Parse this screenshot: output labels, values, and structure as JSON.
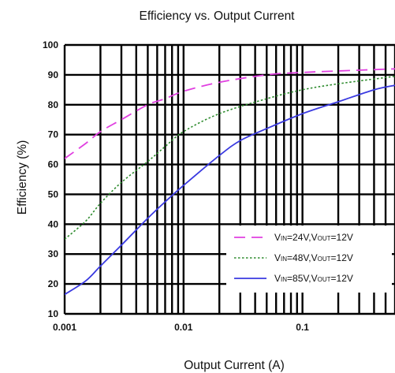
{
  "chart_data": {
    "type": "line",
    "title": "Efficiency vs. Output Current",
    "xlabel": "Output Current (A)",
    "ylabel": "Efficiency (%)",
    "xscale": "log",
    "xlim": [
      0.001,
      0.6
    ],
    "ylim": [
      10,
      100
    ],
    "grid": true,
    "legend_position": "lower-right",
    "x_tick_labels": [
      {
        "value": 0.001,
        "label": "0.001"
      },
      {
        "value": 0.01,
        "label": "0.01"
      },
      {
        "value": 0.1,
        "label": "0.1"
      }
    ],
    "y_tick_labels": [
      {
        "value": 10,
        "label": "10"
      },
      {
        "value": 20,
        "label": "20"
      },
      {
        "value": 30,
        "label": "30"
      },
      {
        "value": 40,
        "label": "40"
      },
      {
        "value": 50,
        "label": "50"
      },
      {
        "value": 60,
        "label": "60"
      },
      {
        "value": 70,
        "label": "70"
      },
      {
        "value": 80,
        "label": "80"
      },
      {
        "value": 90,
        "label": "90"
      },
      {
        "value": 100,
        "label": "100"
      }
    ],
    "series": [
      {
        "legend": {
          "v1": "V",
          "s1": "IN",
          "t1": "=24V,V",
          "s2": "OUT",
          "t2": "=12V"
        },
        "color": "#e040e0",
        "dash": "dashed",
        "points": [
          [
            0.001,
            62
          ],
          [
            0.0015,
            67
          ],
          [
            0.002,
            71
          ],
          [
            0.003,
            75
          ],
          [
            0.005,
            80
          ],
          [
            0.007,
            82
          ],
          [
            0.01,
            84.5
          ],
          [
            0.02,
            87.5
          ],
          [
            0.05,
            90
          ],
          [
            0.1,
            90.8
          ],
          [
            0.2,
            91.3
          ],
          [
            0.6,
            92
          ]
        ]
      },
      {
        "legend": {
          "v1": "V",
          "s1": "IN",
          "t1": "=48V,V",
          "s2": "OUT",
          "t2": "=12V"
        },
        "color": "#2e8b2e",
        "dash": "dotted",
        "points": [
          [
            0.001,
            35
          ],
          [
            0.0015,
            41
          ],
          [
            0.002,
            47
          ],
          [
            0.003,
            54
          ],
          [
            0.005,
            61
          ],
          [
            0.007,
            66
          ],
          [
            0.01,
            71
          ],
          [
            0.02,
            77
          ],
          [
            0.05,
            82
          ],
          [
            0.1,
            85
          ],
          [
            0.2,
            87
          ],
          [
            0.6,
            89.5
          ]
        ]
      },
      {
        "legend": {
          "v1": "V",
          "s1": "IN",
          "t1": "=85V,V",
          "s2": "OUT",
          "t2": "=12V"
        },
        "color": "#3a3ae0",
        "dash": "solid",
        "points": [
          [
            0.001,
            16.5
          ],
          [
            0.0015,
            21
          ],
          [
            0.002,
            26
          ],
          [
            0.003,
            33
          ],
          [
            0.005,
            42
          ],
          [
            0.007,
            47.5
          ],
          [
            0.01,
            53
          ],
          [
            0.02,
            63
          ],
          [
            0.03,
            68
          ],
          [
            0.05,
            72
          ],
          [
            0.1,
            77
          ],
          [
            0.2,
            81
          ],
          [
            0.4,
            85
          ],
          [
            0.6,
            86.5
          ]
        ]
      }
    ]
  }
}
